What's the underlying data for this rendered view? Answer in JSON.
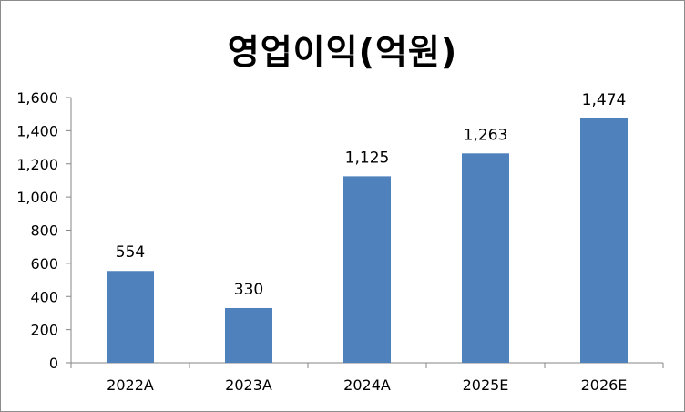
{
  "chart_data": {
    "type": "bar",
    "title": "영업이익(억원)",
    "categories": [
      "2022A",
      "2023A",
      "2024A",
      "2025E",
      "2026E"
    ],
    "values": [
      554,
      330,
      1125,
      1263,
      1474
    ],
    "value_labels": [
      "554",
      "330",
      "1,125",
      "1,263",
      "1,474"
    ],
    "ylim": [
      0,
      1600
    ],
    "yticks": [
      0,
      200,
      400,
      600,
      800,
      1000,
      1200,
      1400,
      1600
    ],
    "ytick_labels": [
      "0",
      "200",
      "400",
      "600",
      "800",
      "1,000",
      "1,200",
      "1,400",
      "1,600"
    ],
    "bar_color": "#4f81bd",
    "grid": false,
    "legend": "none"
  }
}
